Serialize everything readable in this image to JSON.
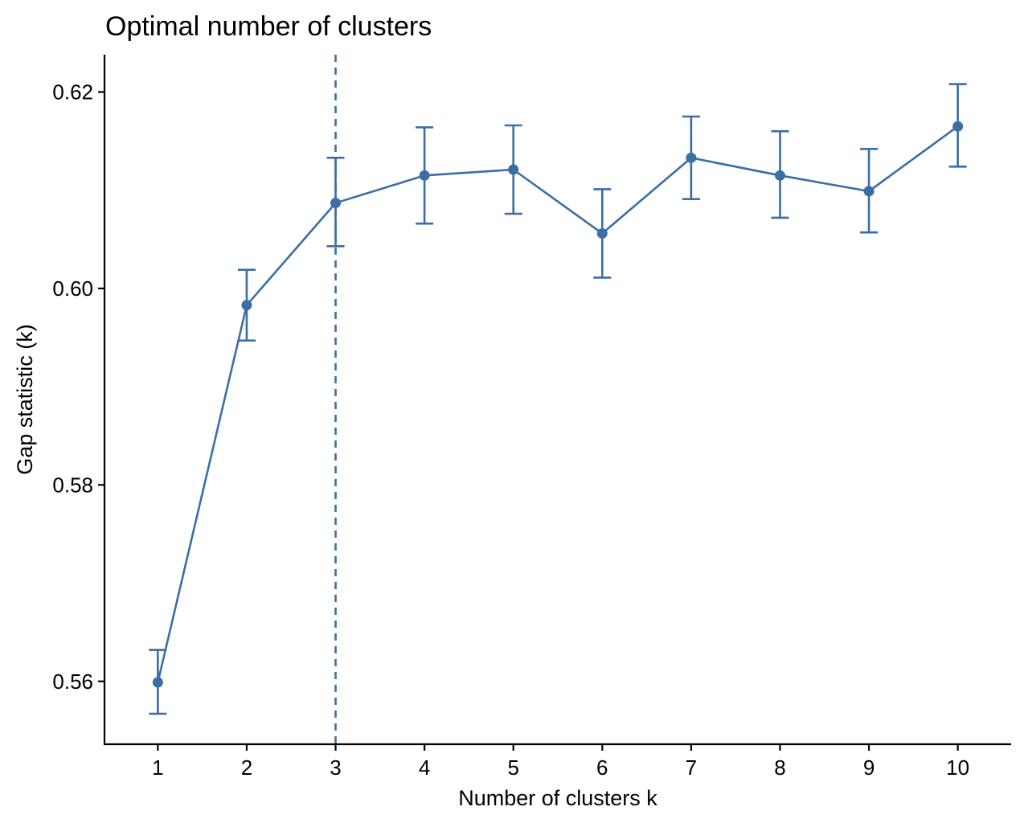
{
  "chart_data": {
    "type": "line",
    "title": "Optimal number of clusters",
    "xlabel": "Number of clusters k",
    "ylabel": "Gap statistic (k)",
    "x": [
      1,
      2,
      3,
      4,
      5,
      6,
      7,
      8,
      9,
      10
    ],
    "x_tick_labels": [
      "1",
      "2",
      "3",
      "4",
      "5",
      "6",
      "7",
      "8",
      "9",
      "10"
    ],
    "y_ticks": [
      0.56,
      0.58,
      0.6,
      0.62
    ],
    "y_tick_labels": [
      "0.56",
      "0.58",
      "0.60",
      "0.62"
    ],
    "ylim": [
      0.5536,
      0.6238
    ],
    "xlim": [
      0.4,
      10.6
    ],
    "series": [
      {
        "values": [
          0.5599,
          0.5983,
          0.6087,
          0.6115,
          0.6121,
          0.6056,
          0.6133,
          0.6115,
          0.6099,
          0.6165
        ],
        "error_lower": [
          0.5567,
          0.5947,
          0.6043,
          0.6066,
          0.6076,
          0.6011,
          0.6091,
          0.6072,
          0.6057,
          0.6124
        ],
        "error_upper": [
          0.5632,
          0.6019,
          0.6133,
          0.6164,
          0.6166,
          0.6101,
          0.6175,
          0.616,
          0.6142,
          0.6208
        ]
      }
    ],
    "vline": {
      "x": 3,
      "style": "dashed"
    },
    "color": "#3A6EA5",
    "grid": false,
    "legend": "none"
  }
}
